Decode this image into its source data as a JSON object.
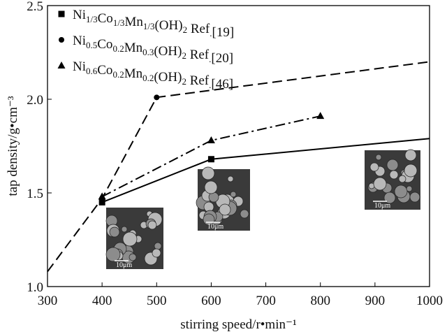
{
  "chart_data": {
    "type": "line",
    "xlabel": "stirring speed/r•min⁻¹",
    "ylabel": "tap density/g•cm⁻³",
    "xlim": [
      300,
      1000
    ],
    "xticks": [
      300,
      400,
      500,
      600,
      700,
      800,
      900,
      1000
    ],
    "ylim": [
      1.0,
      2.5
    ],
    "yticks": [
      {
        "value": 1.0,
        "label": "1.0"
      },
      1.5,
      {
        "value": 2.0,
        "label": "2.0"
      },
      2.5
    ],
    "legend": "upper left",
    "series": [
      {
        "name": "Ni1/3Co1/3Mn1/3(OH)2 Ref.[19]",
        "color": "#000000",
        "marker": "square",
        "dash": "solid",
        "x": [
          400,
          600,
          1000
        ],
        "values": [
          1.45,
          1.68,
          1.79
        ]
      },
      {
        "name": "Ni0.5Co0.2Mn0.3(OH)2  Ref.[20]",
        "color": "#000000",
        "marker": "circle",
        "dash": "dashed",
        "x": [
          300,
          400,
          500,
          1000
        ],
        "values": [
          1.08,
          1.47,
          2.01,
          2.2
        ]
      },
      {
        "name": "Ni0.6Co0.2Mn0.2(OH)2  Ref.[46]",
        "color": "#000000",
        "marker": "triangle",
        "dash": "dashdot",
        "x": [
          400,
          600,
          800
        ],
        "values": [
          1.48,
          1.78,
          1.91
        ]
      }
    ],
    "insets": [
      {
        "label": "10μm"
      },
      {
        "label": "10μm"
      },
      {
        "label": "10μm"
      }
    ]
  }
}
